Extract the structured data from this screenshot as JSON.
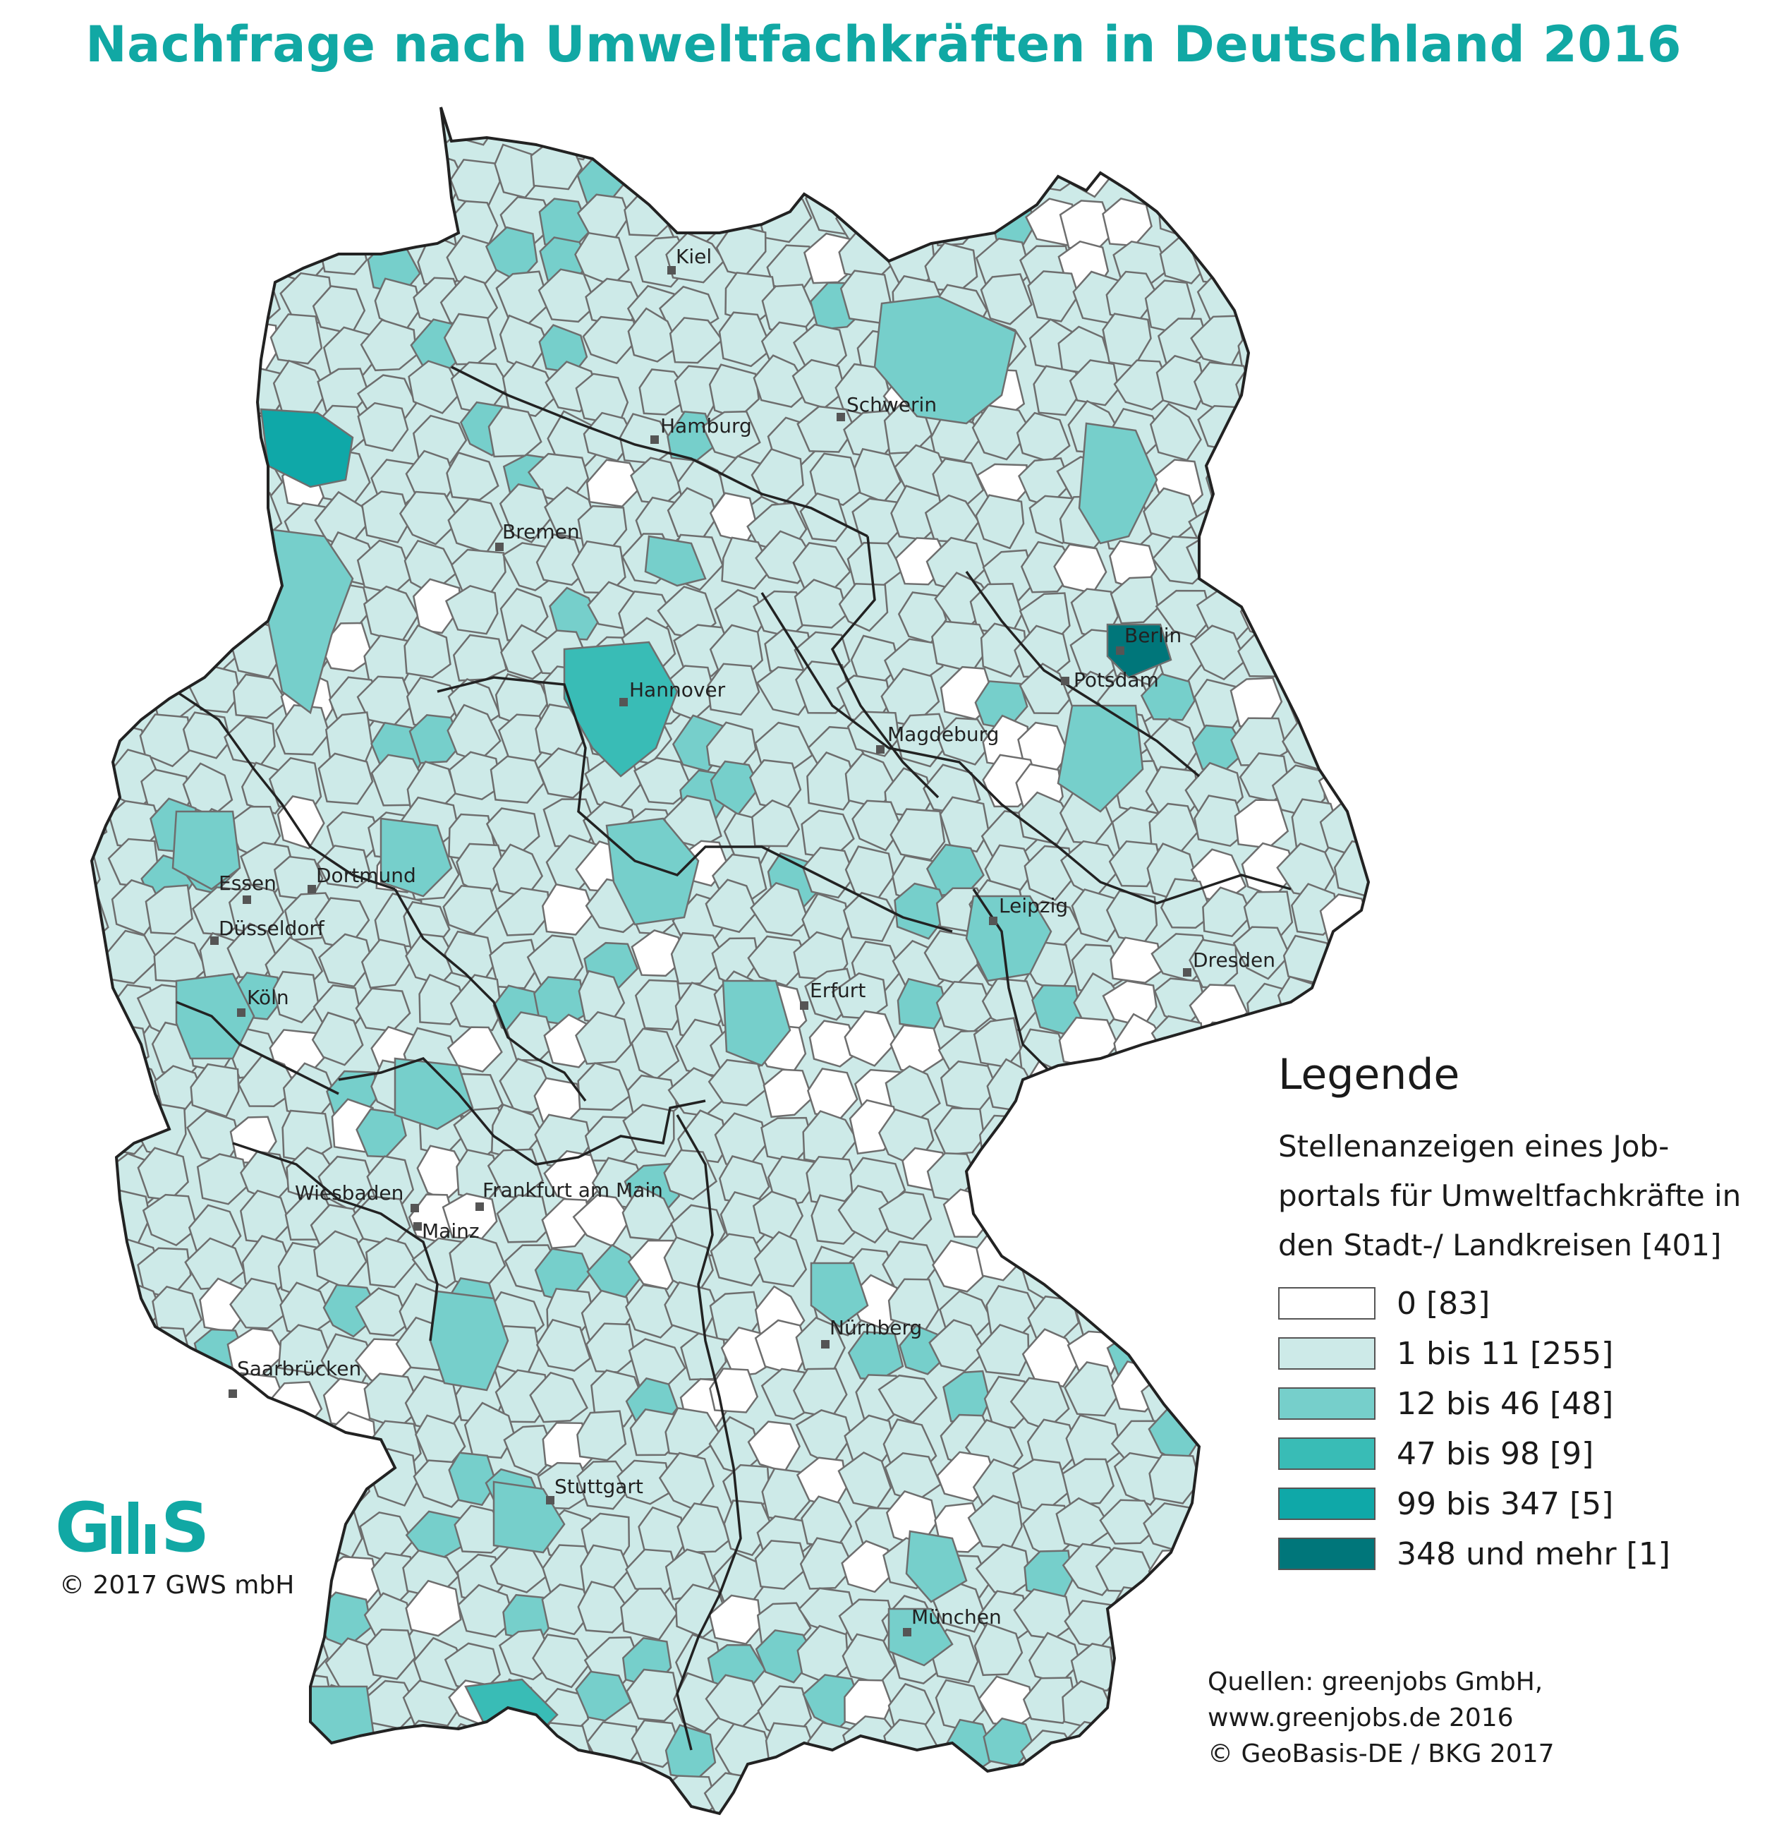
{
  "title": "Nachfrage nach Umweltfachkräften in Deutschland 2016",
  "legend": {
    "heading": "Legende",
    "description": "Stellenanzeigen eines Job-portals für Umweltfachkräfte in den Stadt-/ Landkreisen [401]",
    "classes": [
      {
        "label": "0  [83]",
        "color": "#ffffff"
      },
      {
        "label": "1 bis 11 [255]",
        "color": "#cdeae8"
      },
      {
        "label": "12 bis 46  [48]",
        "color": "#76cfcb"
      },
      {
        "label": "47 bis 98  [9]",
        "color": "#39bcb6"
      },
      {
        "label": "99 bis 347 [5]",
        "color": "#0fa8a8"
      },
      {
        "label": "348 und mehr [1]",
        "color": "#00767a"
      }
    ]
  },
  "cities": [
    {
      "name": "Kiel",
      "class": 3
    },
    {
      "name": "Hamburg",
      "class": 4
    },
    {
      "name": "Schwerin",
      "class": 1
    },
    {
      "name": "Bremen",
      "class": 3
    },
    {
      "name": "Berlin",
      "class": 5
    },
    {
      "name": "Potsdam",
      "class": 3
    },
    {
      "name": "Hannover",
      "class": 3
    },
    {
      "name": "Magdeburg",
      "class": 2
    },
    {
      "name": "Essen",
      "class": 2
    },
    {
      "name": "Dortmund",
      "class": 1
    },
    {
      "name": "Düsseldorf",
      "class": 4
    },
    {
      "name": "Leipzig",
      "class": 3
    },
    {
      "name": "Dresden",
      "class": 2
    },
    {
      "name": "Erfurt",
      "class": 2
    },
    {
      "name": "Köln",
      "class": 2
    },
    {
      "name": "Wiesbaden",
      "class": 3
    },
    {
      "name": "Frankfurt am Main",
      "class": 4
    },
    {
      "name": "Mainz",
      "class": 3
    },
    {
      "name": "Nürnberg",
      "class": 2
    },
    {
      "name": "Saarbrücken",
      "class": 1
    },
    {
      "name": "Stuttgart",
      "class": 3
    },
    {
      "name": "München",
      "class": 4
    }
  ],
  "logo_text": "GWS",
  "copyright": "© 2017 GWS mbH",
  "sources": [
    "Quellen: greenjobs GmbH,",
    "www.greenjobs.de 2016",
    "© GeoBasis-DE / BKG 2017"
  ],
  "border_color": "#6e6e6e",
  "state_border_color": "#222222"
}
